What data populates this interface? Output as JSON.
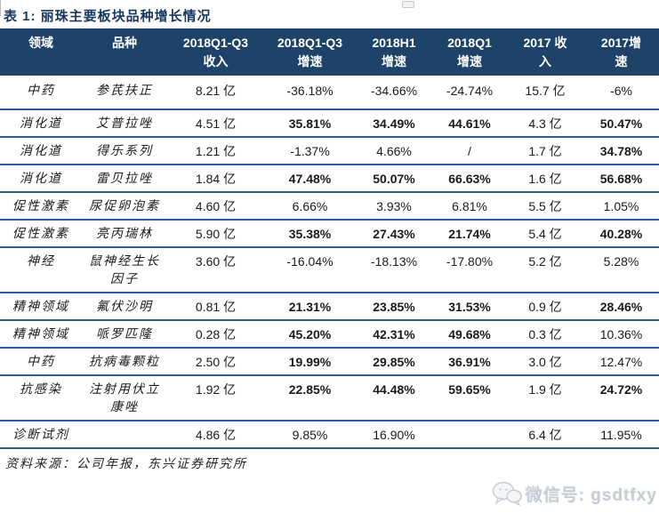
{
  "title": "表 1: 丽珠主要板块品种增长情况",
  "colors": {
    "header_bg": "#1e4369",
    "header_text": "#ffffff",
    "row_border": "#2b5b9c",
    "title_text": "#17375e",
    "watermark_text": "#c6ccd3"
  },
  "table": {
    "headers": [
      {
        "line1": "领域",
        "line2": ""
      },
      {
        "line1": "品种",
        "line2": ""
      },
      {
        "line1": "2018Q1-Q3",
        "line2": "收入"
      },
      {
        "line1": "2018Q1-Q3",
        "line2": "增速"
      },
      {
        "line1": "2018H1",
        "line2": "增速"
      },
      {
        "line1": "2018Q1",
        "line2": "增速"
      },
      {
        "line1": "2017 收",
        "line2": "入"
      },
      {
        "line1": "2017增",
        "line2": "速"
      }
    ],
    "rows": [
      {
        "cells": [
          "中药",
          "参芪扶正",
          "8.21 亿",
          "-36.18%",
          "-34.66%",
          "-24.74%",
          "15.7 亿",
          "-6%"
        ],
        "bold": [
          false,
          false,
          false,
          false,
          false,
          false,
          false,
          false
        ]
      },
      {
        "cells": [
          "消化道",
          "艾普拉唑",
          "4.51 亿",
          "35.81%",
          "34.49%",
          "44.61%",
          "4.3 亿",
          "50.47%"
        ],
        "bold": [
          false,
          false,
          false,
          true,
          true,
          true,
          false,
          true
        ]
      },
      {
        "cells": [
          "消化道",
          "得乐系列",
          "1.21 亿",
          "-1.37%",
          "4.66%",
          "/",
          "1.7 亿",
          "34.78%"
        ],
        "bold": [
          false,
          false,
          false,
          false,
          false,
          false,
          false,
          true
        ]
      },
      {
        "cells": [
          "消化道",
          "雷贝拉唑",
          "1.84 亿",
          "47.48%",
          "50.07%",
          "66.63%",
          "1.6 亿",
          "56.68%"
        ],
        "bold": [
          false,
          false,
          false,
          true,
          true,
          true,
          false,
          true
        ]
      },
      {
        "cells": [
          "促性激素",
          "尿促卵泡素",
          "4.60 亿",
          "6.66%",
          "3.93%",
          "6.81%",
          "5.5 亿",
          "1.05%"
        ],
        "bold": [
          false,
          false,
          false,
          false,
          false,
          false,
          false,
          false
        ]
      },
      {
        "cells": [
          "促性激素",
          "亮丙瑞林",
          "5.90 亿",
          "35.38%",
          "27.43%",
          "21.74%",
          "5.4 亿",
          "40.28%"
        ],
        "bold": [
          false,
          false,
          false,
          true,
          true,
          true,
          false,
          true
        ]
      },
      {
        "cells": [
          "神经",
          "鼠神经生长因子",
          "3.60 亿",
          "-16.04%",
          "-18.13%",
          "-17.80%",
          "5.2 亿",
          "5.28%"
        ],
        "bold": [
          false,
          false,
          false,
          false,
          false,
          false,
          false,
          false
        ]
      },
      {
        "cells": [
          "精神领域",
          "氟伏沙明",
          "0.81 亿",
          "21.31%",
          "23.85%",
          "31.53%",
          "0.9 亿",
          "28.46%"
        ],
        "bold": [
          false,
          false,
          false,
          true,
          true,
          true,
          false,
          true
        ]
      },
      {
        "cells": [
          "精神领域",
          "哌罗匹隆",
          "0.28 亿",
          "45.20%",
          "42.31%",
          "49.68%",
          "0.3 亿",
          "10.36%"
        ],
        "bold": [
          false,
          false,
          false,
          true,
          true,
          true,
          false,
          false
        ]
      },
      {
        "cells": [
          "中药",
          "抗病毒颗粒",
          "2.50 亿",
          "19.99%",
          "29.85%",
          "36.91%",
          "3.0 亿",
          "12.47%"
        ],
        "bold": [
          false,
          false,
          false,
          true,
          true,
          true,
          false,
          false
        ]
      },
      {
        "cells": [
          "抗感染",
          "注射用伏立康唑",
          "1.92 亿",
          "22.85%",
          "44.48%",
          "59.65%",
          "1.9 亿",
          "24.72%"
        ],
        "bold": [
          false,
          false,
          false,
          true,
          true,
          true,
          false,
          true
        ]
      },
      {
        "cells": [
          "诊断试剂",
          "",
          "4.86 亿",
          "9.85%",
          "16.90%",
          "",
          "6.4 亿",
          "11.95%"
        ],
        "bold": [
          false,
          false,
          false,
          false,
          false,
          false,
          false,
          false
        ]
      }
    ]
  },
  "footer": {
    "source": "资料来源：公司年报，东兴证券研究所"
  },
  "watermark": {
    "label": "微信号: gsdtfxy"
  }
}
